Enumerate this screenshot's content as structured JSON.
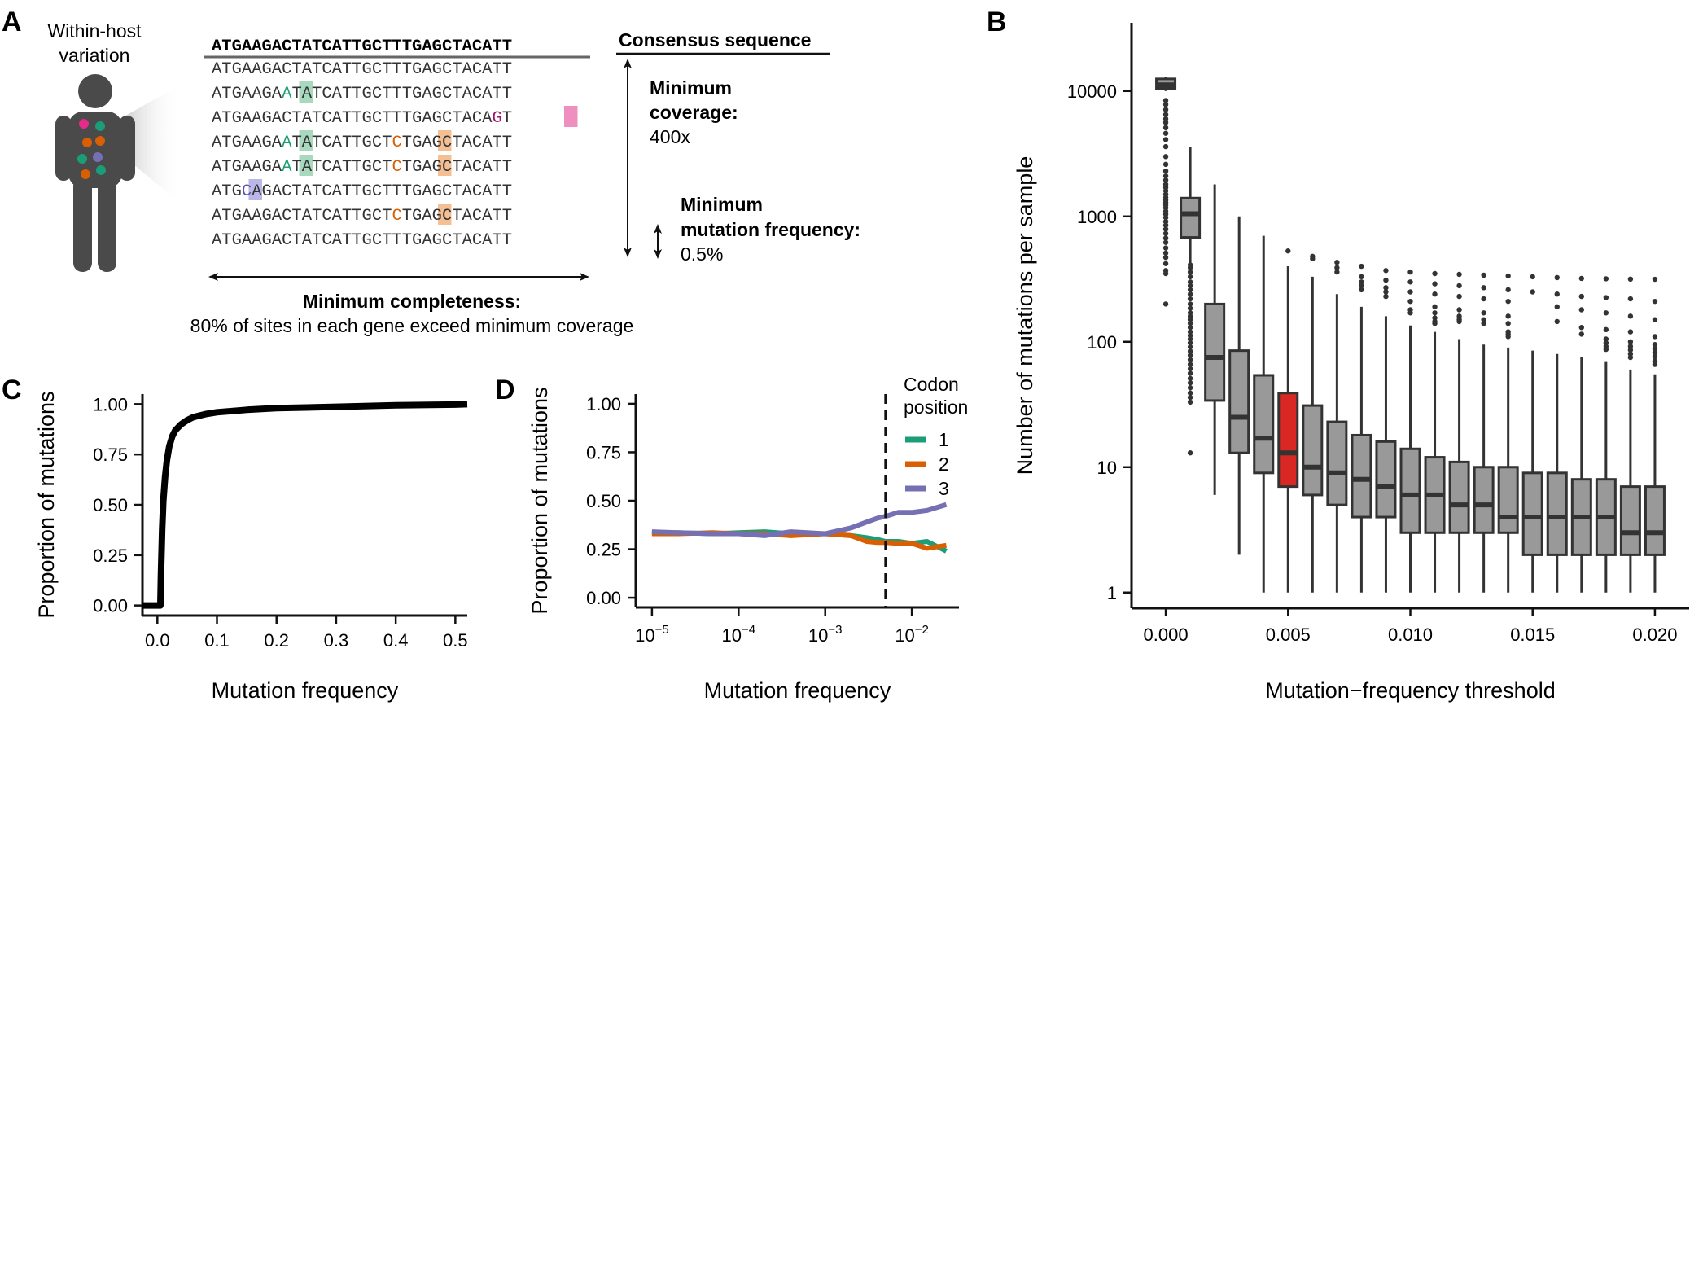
{
  "panels": {
    "a": {
      "letter": "A",
      "host_label_line1": "Within-host",
      "host_label_line2": "variation",
      "consensus_label": "Consensus sequence",
      "consensus": "ATGAAGACTATCATTGCTTTGAGCTACATT",
      "reads": [
        {
          "text": "ATGAAGACTATCATTGCTTTGAGCTACATT",
          "highlights": []
        },
        {
          "text": "ATGAAGAATATCATTGCTTTGAGCTACATT",
          "highlights": [
            {
              "pos": 7,
              "color": "green"
            }
          ]
        },
        {
          "text": "ATGAAGACTATCATTGCTTTGAGCTACAGT",
          "highlights": [
            {
              "pos": 28,
              "color": "pink"
            }
          ]
        },
        {
          "text": "ATGAAGAATATCATTGCTCTGAGCTACATT",
          "highlights": [
            {
              "pos": 7,
              "color": "green"
            },
            {
              "pos": 18,
              "color": "orange"
            }
          ]
        },
        {
          "text": "ATGAAGAATATCATTGCTCTGAGCTACATT",
          "highlights": [
            {
              "pos": 7,
              "color": "green"
            },
            {
              "pos": 18,
              "color": "orange"
            }
          ]
        },
        {
          "text": "ATGCAGACTATCATTGCTTTGAGCTACATT",
          "highlights": [
            {
              "pos": 3,
              "color": "purple"
            }
          ]
        },
        {
          "text": "ATGAAGACTATCATTGCTCTGAGCTACATT",
          "highlights": [
            {
              "pos": 18,
              "color": "orange"
            }
          ]
        },
        {
          "text": "ATGAAGACTATCATTGCTTTGAGCTACATT",
          "highlights": []
        }
      ],
      "coverage_title_1": "Minimum",
      "coverage_title_2": "coverage:",
      "coverage_value": "400x",
      "frequency_title_1": "Minimum",
      "frequency_title_2": "mutation frequency:",
      "frequency_value": "0.5%",
      "completeness_title": "Minimum completeness:",
      "completeness_text": "80% of sites in each gene exceed minimum coverage",
      "highlight_colors": {
        "green": "#a8d8be",
        "orange": "#f3bf93",
        "pink": "#ef8fc0",
        "purple": "#bab6e6"
      },
      "letter_colors": {
        "green": "#1b9e77",
        "orange": "#d95f02",
        "pink": "#a0146e",
        "purple": "#5a52b5"
      },
      "dot_colors": [
        "#e7298a",
        "#1b9e77",
        "#d95f02",
        "#7570b3"
      ]
    },
    "b": {
      "letter": "B"
    },
    "c": {
      "letter": "C"
    },
    "d": {
      "letter": "D"
    }
  },
  "chart_data": [
    {
      "panel": "B",
      "type": "box",
      "xlabel": "Mutation−frequency threshold",
      "ylabel": "Number of mutations per sample",
      "yscale": "log10",
      "ylim": [
        0.75,
        35000
      ],
      "xlim": [
        -0.0014,
        0.0214
      ],
      "xticks": [
        0.0,
        0.005,
        0.01,
        0.015,
        0.02
      ],
      "xtick_labels": [
        "0.000",
        "0.005",
        "0.010",
        "0.015",
        "0.020"
      ],
      "yticks": [
        1,
        10,
        100,
        1000,
        10000
      ],
      "ytick_labels": [
        "1",
        "10",
        "100",
        "1000",
        "10000"
      ],
      "box_color": "#999999",
      "highlight_color": "#d92823",
      "highlight_threshold": 0.005,
      "boxes": [
        {
          "x": 0.0,
          "q1": 10500,
          "median": 11200,
          "q3": 12500,
          "wlow": 10000,
          "whigh": 13000,
          "outliers": [
            8400,
            7800,
            7100,
            6500,
            6000,
            5600,
            5100,
            4600,
            4100,
            3600,
            3000,
            2600,
            2300,
            2100,
            1950,
            1800,
            1700,
            1600,
            1500,
            1420,
            1350,
            1290,
            1230,
            1170,
            1100,
            1040,
            980,
            910,
            850,
            790,
            730,
            670,
            620,
            560,
            510,
            470,
            420,
            370,
            350,
            200
          ]
        },
        {
          "x": 0.001,
          "q1": 680,
          "median": 1050,
          "q3": 1400,
          "wlow": 420,
          "whigh": 3600,
          "outliers": [
            410,
            390,
            360,
            330,
            300,
            280,
            260,
            240,
            220,
            200,
            185,
            170,
            160,
            150,
            140,
            130,
            120,
            112,
            105,
            98,
            91,
            84,
            78,
            72,
            66,
            61,
            56,
            51,
            47,
            43,
            39,
            36,
            33,
            13
          ]
        },
        {
          "x": 0.002,
          "q1": 34,
          "median": 75,
          "q3": 200,
          "wlow": 6,
          "whigh": 1800,
          "outliers": []
        },
        {
          "x": 0.003,
          "q1": 13,
          "median": 25,
          "q3": 85,
          "wlow": 2,
          "whigh": 1000,
          "outliers": []
        },
        {
          "x": 0.004,
          "q1": 9,
          "median": 17,
          "q3": 54,
          "wlow": 1,
          "whigh": 700,
          "outliers": []
        },
        {
          "x": 0.005,
          "q1": 7,
          "median": 13,
          "q3": 39,
          "wlow": 1,
          "whigh": 400,
          "outliers": [
            530
          ]
        },
        {
          "x": 0.006,
          "q1": 6,
          "median": 10,
          "q3": 31,
          "wlow": 1,
          "whigh": 330,
          "outliers": [
            480,
            460
          ]
        },
        {
          "x": 0.007,
          "q1": 5,
          "median": 9,
          "q3": 23,
          "wlow": 1,
          "whigh": 240,
          "outliers": [
            430,
            390,
            360
          ]
        },
        {
          "x": 0.008,
          "q1": 4,
          "median": 8,
          "q3": 18,
          "wlow": 1,
          "whigh": 190,
          "outliers": [
            400,
            330,
            300,
            280,
            260
          ]
        },
        {
          "x": 0.009,
          "q1": 4,
          "median": 7,
          "q3": 16,
          "wlow": 1,
          "whigh": 160,
          "outliers": [
            370,
            310,
            270,
            250,
            230
          ]
        },
        {
          "x": 0.01,
          "q1": 3,
          "median": 6,
          "q3": 14,
          "wlow": 1,
          "whigh": 135,
          "outliers": [
            360,
            300,
            250,
            210,
            180,
            170
          ]
        },
        {
          "x": 0.011,
          "q1": 3,
          "median": 6,
          "q3": 12,
          "wlow": 1,
          "whigh": 120,
          "outliers": [
            350,
            290,
            240,
            190,
            170,
            155,
            145,
            140
          ]
        },
        {
          "x": 0.012,
          "q1": 3,
          "median": 5,
          "q3": 11,
          "wlow": 1,
          "whigh": 105,
          "outliers": [
            345,
            280,
            230,
            180,
            160,
            150,
            145
          ]
        },
        {
          "x": 0.013,
          "q1": 3,
          "median": 5,
          "q3": 10,
          "wlow": 1,
          "whigh": 95,
          "outliers": [
            340,
            270,
            220,
            170,
            150,
            140
          ]
        },
        {
          "x": 0.014,
          "q1": 3,
          "median": 4,
          "q3": 10,
          "wlow": 1,
          "whigh": 90,
          "outliers": [
            335,
            260,
            210,
            160,
            140,
            120,
            115,
            110
          ]
        },
        {
          "x": 0.015,
          "q1": 2,
          "median": 4,
          "q3": 9,
          "wlow": 1,
          "whigh": 85,
          "outliers": [
            330,
            250
          ]
        },
        {
          "x": 0.016,
          "q1": 2,
          "median": 4,
          "q3": 9,
          "wlow": 1,
          "whigh": 80,
          "outliers": [
            325,
            240,
            190,
            145
          ]
        },
        {
          "x": 0.017,
          "q1": 2,
          "median": 4,
          "q3": 8,
          "wlow": 1,
          "whigh": 75,
          "outliers": [
            320,
            230,
            180,
            130,
            115
          ]
        },
        {
          "x": 0.018,
          "q1": 2,
          "median": 4,
          "q3": 8,
          "wlow": 1,
          "whigh": 70,
          "outliers": [
            318,
            225,
            170,
            125,
            105,
            98,
            92,
            87
          ]
        },
        {
          "x": 0.019,
          "q1": 2,
          "median": 3,
          "q3": 7,
          "wlow": 1,
          "whigh": 60,
          "outliers": [
            316,
            220,
            160,
            120,
            100,
            92,
            86,
            80,
            75
          ]
        },
        {
          "x": 0.02,
          "q1": 2,
          "median": 3,
          "q3": 7,
          "wlow": 1,
          "whigh": 55,
          "outliers": [
            315,
            210,
            150,
            110,
            95,
            88,
            82,
            76,
            70,
            66
          ]
        }
      ]
    },
    {
      "panel": "C",
      "type": "line",
      "xlabel": "Mutation frequency",
      "ylabel": "Proportion of mutations",
      "xlim": [
        -0.025,
        0.52
      ],
      "ylim": [
        -0.05,
        1.05
      ],
      "xticks": [
        0.0,
        0.1,
        0.2,
        0.3,
        0.4,
        0.5
      ],
      "xtick_labels": [
        "0.0",
        "0.1",
        "0.2",
        "0.3",
        "0.4",
        "0.5"
      ],
      "yticks": [
        0.0,
        0.25,
        0.5,
        0.75,
        1.0
      ],
      "ytick_labels": [
        "0.00",
        "0.25",
        "0.50",
        "0.75",
        "1.00"
      ],
      "x": [
        -0.025,
        0.0,
        0.005,
        0.006,
        0.008,
        0.01,
        0.013,
        0.016,
        0.02,
        0.025,
        0.03,
        0.04,
        0.05,
        0.06,
        0.08,
        0.1,
        0.15,
        0.2,
        0.3,
        0.4,
        0.5,
        0.52
      ],
      "y": [
        0.0,
        0.0,
        0.0,
        0.15,
        0.38,
        0.52,
        0.64,
        0.72,
        0.79,
        0.84,
        0.87,
        0.9,
        0.92,
        0.935,
        0.95,
        0.96,
        0.972,
        0.98,
        0.987,
        0.994,
        0.998,
        1.0
      ]
    },
    {
      "panel": "D",
      "type": "line",
      "xlabel": "Mutation frequency",
      "ylabel": "Proportion of mutations",
      "xscale": "log10",
      "xlim": [
        6.5e-06,
        0.035
      ],
      "ylim": [
        -0.05,
        1.05
      ],
      "xticks": [
        1e-05,
        0.0001,
        0.001,
        0.01
      ],
      "xtick_labels": [
        [
          "10",
          "−5"
        ],
        [
          "10",
          "−4"
        ],
        [
          "10",
          "−3"
        ],
        [
          "10",
          "−2"
        ]
      ],
      "yticks": [
        0.0,
        0.25,
        0.5,
        0.75,
        1.0
      ],
      "ytick_labels": [
        "0.00",
        "0.25",
        "0.50",
        "0.75",
        "1.00"
      ],
      "vline": 0.005,
      "legend_title_1": "Codon",
      "legend_title_2": "position",
      "legend_position": "top-right",
      "x": [
        1e-05,
        2e-05,
        5e-05,
        0.0001,
        0.0002,
        0.0004,
        0.001,
        0.002,
        0.003,
        0.004,
        0.005,
        0.007,
        0.01,
        0.015,
        0.025
      ],
      "series": [
        {
          "name": "1",
          "color": "#1b9e77",
          "values": [
            0.33,
            0.335,
            0.33,
            0.335,
            0.34,
            0.33,
            0.33,
            0.32,
            0.31,
            0.3,
            0.29,
            0.29,
            0.28,
            0.29,
            0.24
          ]
        },
        {
          "name": "2",
          "color": "#d95f02",
          "values": [
            0.33,
            0.33,
            0.335,
            0.33,
            0.33,
            0.32,
            0.33,
            0.32,
            0.29,
            0.285,
            0.285,
            0.28,
            0.28,
            0.255,
            0.27
          ]
        },
        {
          "name": "3",
          "color": "#7570b3",
          "values": [
            0.34,
            0.335,
            0.33,
            0.33,
            0.32,
            0.34,
            0.33,
            0.36,
            0.39,
            0.41,
            0.42,
            0.44,
            0.44,
            0.45,
            0.48
          ]
        }
      ]
    }
  ]
}
